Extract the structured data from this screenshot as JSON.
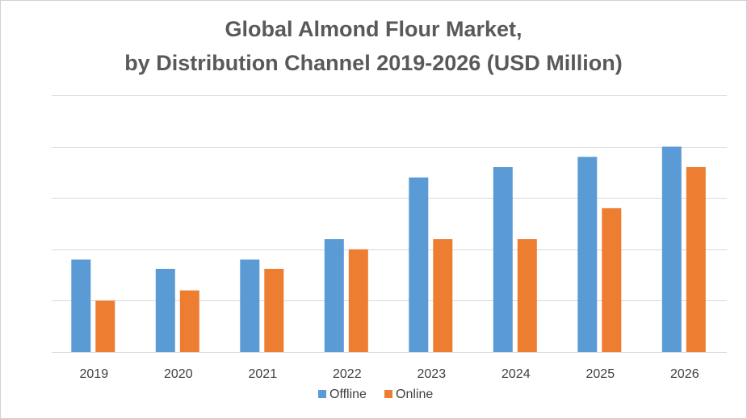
{
  "chart_data": {
    "type": "bar",
    "title": "Global Almond Flour Market,",
    "subtitle": "by Distribution Channel 2019-2026 (USD Million)",
    "xlabel": "",
    "ylabel": "",
    "categories": [
      "2019",
      "2020",
      "2021",
      "2022",
      "2023",
      "2024",
      "2025",
      "2026"
    ],
    "series": [
      {
        "name": "Offline",
        "color": "#5B9BD5",
        "values": [
          9,
          8.1,
          9,
          11,
          17,
          18,
          19,
          20
        ]
      },
      {
        "name": "Online",
        "color": "#ED7D31",
        "values": [
          5,
          6,
          8.1,
          10,
          11,
          11,
          14,
          18
        ]
      }
    ],
    "ylim": [
      0,
      25
    ],
    "y_gridlines": [
      5,
      10,
      15,
      20,
      25
    ],
    "y_tick_labels_shown": false,
    "grid": true,
    "legend_position": "bottom"
  }
}
